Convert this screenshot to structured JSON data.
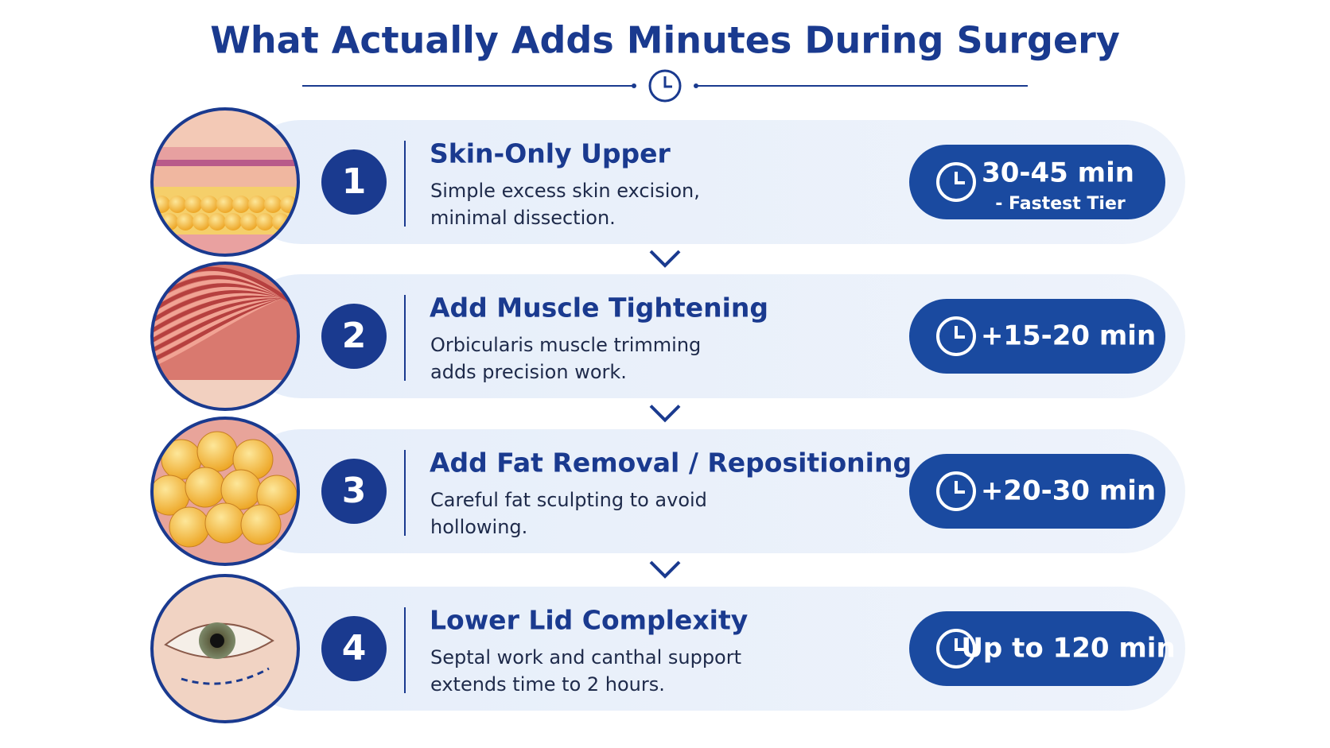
{
  "header": {
    "title": "What Actually Adds Minutes During Surgery"
  },
  "steps": [
    {
      "number": "1",
      "title": "Skin-Only Upper",
      "description": [
        "Simple excess skin excision,",
        "minimal dissection."
      ],
      "time": "30-45 min",
      "note": "- Fastest Tier"
    },
    {
      "number": "2",
      "title": "Add Muscle Tightening",
      "description": [
        "Orbicularis muscle trimming",
        "adds precision work."
      ],
      "time": "+15-20 min"
    },
    {
      "number": "3",
      "title": "Add Fat Removal / Repositioning",
      "description": [
        "Careful fat sculpting to avoid",
        "hollowing."
      ],
      "time": "+20-30 min"
    },
    {
      "number": "4",
      "title": "Lower Lid Complexity",
      "description": [
        "Septal work and canthal support",
        "extends time to 2 hours."
      ],
      "time": "Up to 120 min"
    }
  ]
}
